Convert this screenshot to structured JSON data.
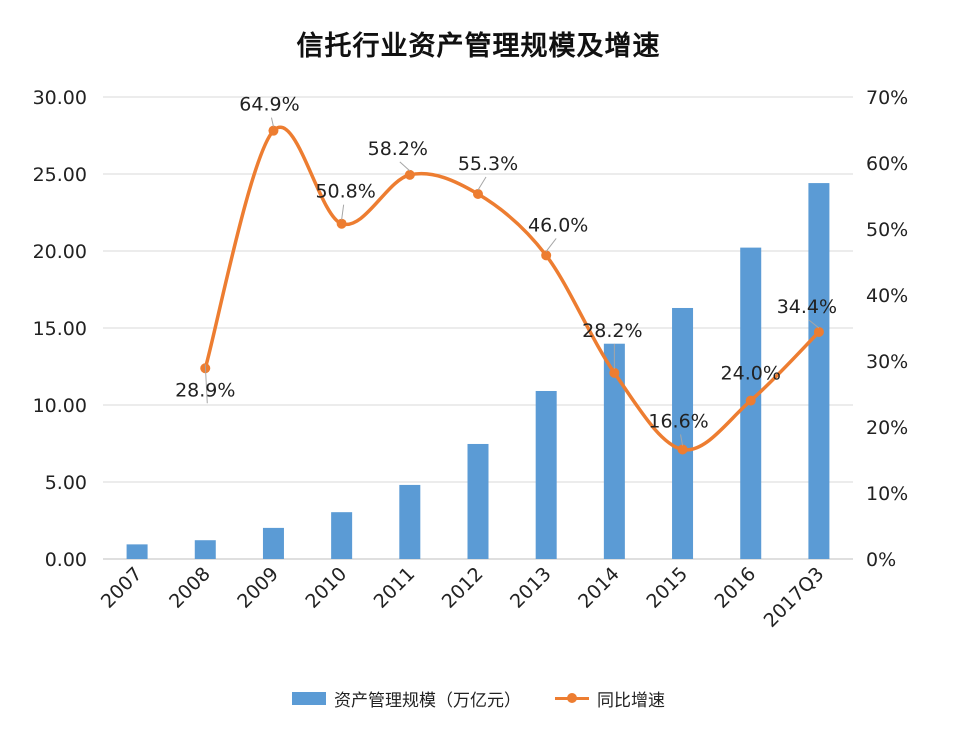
{
  "chart_data": {
    "type": "bar",
    "title": "信托行业资产管理规模及增速",
    "categories": [
      "2007",
      "2008",
      "2009",
      "2010",
      "2011",
      "2012",
      "2013",
      "2014",
      "2015",
      "2016",
      "2017Q3"
    ],
    "series": [
      {
        "name": "资产管理规模（万亿元）",
        "type": "bar",
        "axis": "left",
        "color": "#5b9bd5",
        "values": [
          0.95,
          1.22,
          2.02,
          3.04,
          4.81,
          7.47,
          10.91,
          13.98,
          16.3,
          20.22,
          24.41
        ]
      },
      {
        "name": "同比增速",
        "type": "line",
        "axis": "right",
        "color": "#ed7d31",
        "values": [
          null,
          28.9,
          64.9,
          50.8,
          58.2,
          55.3,
          46.0,
          28.2,
          16.6,
          24.0,
          34.4
        ],
        "labels": [
          "",
          "28.9%",
          "64.9%",
          "50.8%",
          "58.2%",
          "55.3%",
          "46.0%",
          "28.2%",
          "16.6%",
          "24.0%",
          "34.4%"
        ]
      }
    ],
    "y_left": {
      "min": 0,
      "max": 30,
      "ticks": [
        "0.00",
        "5.00",
        "10.00",
        "15.00",
        "20.00",
        "25.00",
        "30.00"
      ]
    },
    "y_right": {
      "min": 0,
      "max": 70,
      "ticks": [
        "0%",
        "10%",
        "20%",
        "30%",
        "40%",
        "50%",
        "60%",
        "70%"
      ]
    },
    "grid": true,
    "legend_position": "bottom"
  }
}
